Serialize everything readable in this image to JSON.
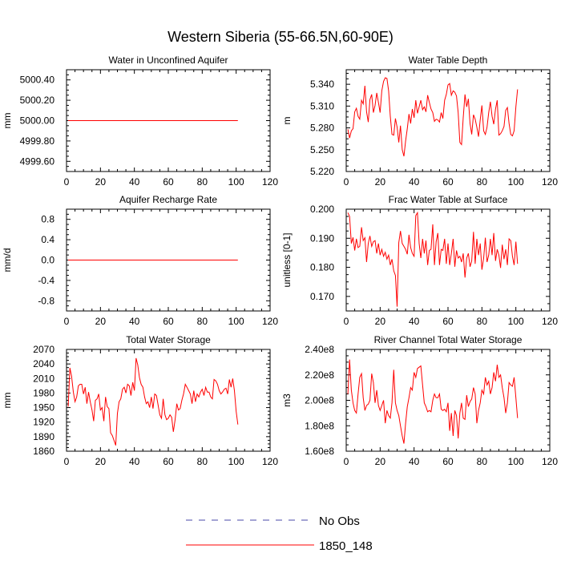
{
  "title": "Western Siberia (55-66.5N,60-90E)",
  "colors": {
    "model": "#ff0000",
    "obs": "#4a4aa8",
    "axis": "#000000"
  },
  "legend": {
    "items": [
      {
        "label": "No Obs",
        "style": "dashed",
        "color": "#4a4aa8"
      },
      {
        "label": "1850_148",
        "style": "solid",
        "color": "#ff0000"
      }
    ]
  },
  "chart_data": [
    {
      "type": "line",
      "title": "Water in Unconfined Aquifer",
      "ylabel": "mm",
      "xlim": [
        0,
        120
      ],
      "xticks": [
        0,
        20,
        40,
        60,
        80,
        100,
        120
      ],
      "ylim": [
        4999.5,
        5000.5
      ],
      "yticks": [
        4999.6,
        4999.8,
        5000.0,
        5000.2,
        5000.4
      ],
      "ytick_labels": [
        "4999.60",
        "4999.80",
        "5000.00",
        "5000.20",
        "5000.40"
      ],
      "series": [
        {
          "x": [
            1,
            101
          ],
          "y": [
            5000.0,
            5000.0
          ]
        }
      ]
    },
    {
      "type": "line",
      "title": "Water Table Depth",
      "ylabel": "m",
      "xlim": [
        0,
        120
      ],
      "xticks": [
        0,
        20,
        40,
        60,
        80,
        100,
        120
      ],
      "ylim": [
        5.22,
        5.36
      ],
      "yticks": [
        5.22,
        5.25,
        5.28,
        5.31,
        5.34
      ],
      "ytick_labels": [
        "5.220",
        "5.250",
        "5.280",
        "5.310",
        "5.340"
      ],
      "series": [
        {
          "x_start": 1,
          "x_step": 1,
          "y": [
            5.278,
            5.266,
            5.276,
            5.279,
            5.302,
            5.307,
            5.296,
            5.292,
            5.318,
            5.313,
            5.338,
            5.302,
            5.288,
            5.319,
            5.326,
            5.301,
            5.311,
            5.328,
            5.315,
            5.301,
            5.331,
            5.344,
            5.349,
            5.348,
            5.331,
            5.296,
            5.271,
            5.27,
            5.293,
            5.281,
            5.26,
            5.283,
            5.25,
            5.241,
            5.262,
            5.279,
            5.299,
            5.286,
            5.306,
            5.294,
            5.318,
            5.3,
            5.309,
            5.318,
            5.305,
            5.309,
            5.302,
            5.325,
            5.315,
            5.306,
            5.301,
            5.289,
            5.292,
            5.291,
            5.288,
            5.301,
            5.293,
            5.318,
            5.326,
            5.339,
            5.341,
            5.325,
            5.331,
            5.329,
            5.324,
            5.301,
            5.26,
            5.257,
            5.294,
            5.326,
            5.309,
            5.32,
            5.286,
            5.271,
            5.298,
            5.292,
            5.281,
            5.268,
            5.291,
            5.311,
            5.276,
            5.271,
            5.281,
            5.301,
            5.316,
            5.296,
            5.285,
            5.306,
            5.318,
            5.27,
            5.272,
            5.276,
            5.282,
            5.304,
            5.308,
            5.286,
            5.271,
            5.269,
            5.276,
            5.309,
            5.333
          ]
        }
      ]
    },
    {
      "type": "line",
      "title": "Aquifer Recharge Rate",
      "ylabel": "mm/d",
      "xlim": [
        0,
        120
      ],
      "xticks": [
        0,
        20,
        40,
        60,
        80,
        100,
        120
      ],
      "ylim": [
        -1.0,
        1.0
      ],
      "yticks": [
        -0.8,
        -0.4,
        0.0,
        0.4,
        0.8
      ],
      "ytick_labels": [
        "-0.8",
        "-0.4",
        "0.0",
        "0.4",
        "0.8"
      ],
      "series": [
        {
          "x": [
            1,
            101
          ],
          "y": [
            0.0,
            0.0
          ]
        }
      ]
    },
    {
      "type": "line",
      "title": "Frac Water Table at Surface",
      "ylabel": "unitless [0-1]",
      "xlim": [
        0,
        120
      ],
      "xticks": [
        0,
        20,
        40,
        60,
        80,
        100,
        120
      ],
      "ylim": [
        0.165,
        0.2
      ],
      "yticks": [
        0.17,
        0.18,
        0.19,
        0.2
      ],
      "ytick_labels": [
        "0.170",
        "0.180",
        "0.190",
        "0.200"
      ],
      "series": [
        {
          "x_start": 1,
          "x_step": 1,
          "y": [
            0.1988,
            0.1975,
            0.1882,
            0.1903,
            0.1858,
            0.1898,
            0.1868,
            0.1872,
            0.1938,
            0.1892,
            0.1902,
            0.1818,
            0.1882,
            0.1908,
            0.1872,
            0.1888,
            0.1892,
            0.1848,
            0.1882,
            0.1842,
            0.1862,
            0.1838,
            0.1852,
            0.1828,
            0.1842,
            0.1808,
            0.1828,
            0.1788,
            0.1772,
            0.1665,
            0.1885,
            0.1925,
            0.1882,
            0.1872,
            0.1862,
            0.1845,
            0.1912,
            0.1868,
            0.1848,
            0.1838,
            0.1978,
            0.1988,
            0.1882,
            0.1832,
            0.1898,
            0.1848,
            0.1892,
            0.1808,
            0.1858,
            0.1862,
            0.1948,
            0.1808,
            0.1888,
            0.1918,
            0.1808,
            0.1862,
            0.1858,
            0.1898,
            0.1812,
            0.1882,
            0.1808,
            0.1848,
            0.1898,
            0.1802,
            0.1858,
            0.1832,
            0.1838,
            0.1818,
            0.1848,
            0.1765,
            0.1832,
            0.1848,
            0.1802,
            0.1822,
            0.1922,
            0.1812,
            0.1898,
            0.1842,
            0.1882,
            0.1792,
            0.1832,
            0.1902,
            0.1818,
            0.1842,
            0.1898,
            0.1842,
            0.1918,
            0.1822,
            0.1862,
            0.1842,
            0.1798,
            0.1878,
            0.1828,
            0.1862,
            0.1808,
            0.1898,
            0.1892,
            0.1838,
            0.1808,
            0.1888,
            0.1812
          ]
        }
      ]
    },
    {
      "type": "line",
      "title": "Total Water Storage",
      "ylabel": "mm",
      "xlim": [
        0,
        120
      ],
      "xticks": [
        0,
        20,
        40,
        60,
        80,
        100,
        120
      ],
      "ylim": [
        1860,
        2070
      ],
      "yticks": [
        1860,
        1890,
        1920,
        1950,
        1980,
        2010,
        2040,
        2070
      ],
      "ytick_labels": [
        "1860",
        "1890",
        "1920",
        "1950",
        "1980",
        "2010",
        "2040",
        "2070"
      ],
      "series": [
        {
          "x_start": 1,
          "x_step": 1,
          "y": [
            1952,
            2032,
            2015,
            1982,
            1962,
            1972,
            1995,
            1998,
            1998,
            1978,
            1992,
            1958,
            1982,
            1962,
            1945,
            1922,
            1965,
            1968,
            1978,
            1945,
            1950,
            1922,
            1972,
            1952,
            1948,
            1898,
            1892,
            1882,
            1872,
            1938,
            1962,
            1968,
            1988,
            1992,
            1980,
            1998,
            1995,
            1975,
            2002,
            1985,
            2052,
            2038,
            2012,
            1998,
            1992,
            1972,
            1958,
            1962,
            1950,
            1972,
            1948,
            1978,
            1975,
            1955,
            1935,
            1928,
            1968,
            1935,
            1925,
            1928,
            1935,
            1930,
            1900,
            1925,
            1958,
            1945,
            1948,
            1965,
            1978,
            1998,
            1992,
            1985,
            1978,
            1958,
            1985,
            1962,
            1978,
            1972,
            1982,
            1988,
            1975,
            1992,
            1982,
            1982,
            1972,
            1968,
            2008,
            2005,
            1998,
            1985,
            1978,
            1982,
            1988,
            1990,
            1978,
            2008,
            1992,
            2010,
            1985,
            1942,
            1915
          ]
        }
      ]
    },
    {
      "type": "line",
      "title": "River Channel Total Water Storage",
      "ylabel": "m3",
      "xlim": [
        0,
        120
      ],
      "xticks": [
        0,
        20,
        40,
        60,
        80,
        100,
        120
      ],
      "ylim": [
        160000000.0,
        240000000.0
      ],
      "yticks": [
        160000000.0,
        180000000.0,
        200000000.0,
        220000000.0,
        240000000.0
      ],
      "ytick_labels": [
        "1.60e8",
        "1.80e8",
        "2.00e8",
        "2.20e8",
        "2.40e8"
      ],
      "series": [
        {
          "x_start": 1,
          "x_step": 1,
          "y": [
            205000000.0,
            232000000.0,
            208000000.0,
            198000000.0,
            192000000.0,
            190000000.0,
            205000000.0,
            218000000.0,
            221000000.0,
            202000000.0,
            192000000.0,
            196000000.0,
            197000000.0,
            200000000.0,
            221000000.0,
            214000000.0,
            198000000.0,
            208000000.0,
            196000000.0,
            192000000.0,
            196000000.0,
            200000000.0,
            182000000.0,
            192000000.0,
            188000000.0,
            186000000.0,
            198000000.0,
            224000000.0,
            198000000.0,
            192000000.0,
            188000000.0,
            180000000.0,
            172000000.0,
            166000000.0,
            182000000.0,
            195000000.0,
            202000000.0,
            210000000.0,
            208000000.0,
            222000000.0,
            218000000.0,
            225000000.0,
            226000000.0,
            227000000.0,
            212000000.0,
            198000000.0,
            195000000.0,
            191000000.0,
            192000000.0,
            191000000.0,
            200000000.0,
            205000000.0,
            202000000.0,
            202000000.0,
            205000000.0,
            193000000.0,
            192000000.0,
            193000000.0,
            191000000.0,
            198000000.0,
            176000000.0,
            190000000.0,
            172000000.0,
            192000000.0,
            188000000.0,
            170000000.0,
            190000000.0,
            198000000.0,
            186000000.0,
            185000000.0,
            204000000.0,
            195000000.0,
            199000000.0,
            201000000.0,
            210000000.0,
            205000000.0,
            182000000.0,
            192000000.0,
            198000000.0,
            208000000.0,
            205000000.0,
            218000000.0,
            212000000.0,
            215000000.0,
            205000000.0,
            210000000.0,
            222000000.0,
            215000000.0,
            228000000.0,
            218000000.0,
            220000000.0,
            210000000.0,
            202000000.0,
            190000000.0,
            198000000.0,
            214000000.0,
            212000000.0,
            211000000.0,
            218000000.0,
            202000000.0,
            186000000.0
          ]
        }
      ]
    }
  ]
}
